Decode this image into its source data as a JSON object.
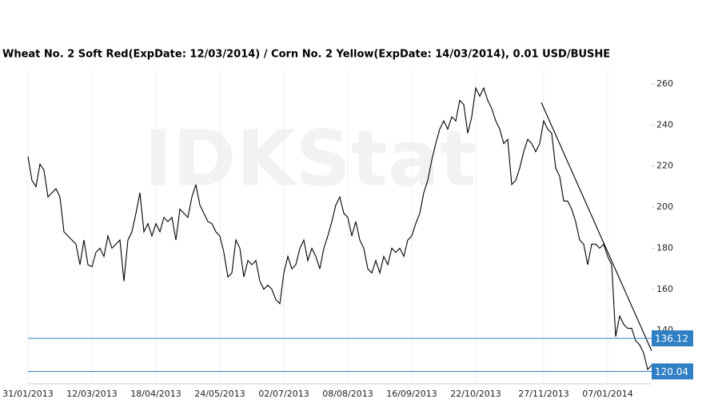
{
  "chart_data": {
    "type": "line",
    "title": "Wheat  No. 2 Soft Red(ExpDate: 12/03/2014) / Corn  No. 2 Yellow(ExpDate: 14/03/2014), 0.01 USD/BUSHE",
    "watermark": "IDKStat",
    "xlim": [
      0,
      156
    ],
    "xticks": [
      {
        "value": 0,
        "label": "31/01/2013"
      },
      {
        "value": 16,
        "label": "12/03/2013"
      },
      {
        "value": 32,
        "label": "18/04/2013"
      },
      {
        "value": 48,
        "label": "24/05/2013"
      },
      {
        "value": 64,
        "label": "02/07/2013"
      },
      {
        "value": 80,
        "label": "08/08/2013"
      },
      {
        "value": 96,
        "label": "16/09/2013"
      },
      {
        "value": 112,
        "label": "22/10/2013"
      },
      {
        "value": 129,
        "label": "27/11/2013"
      },
      {
        "value": 145,
        "label": "07/01/2014"
      }
    ],
    "ylim": [
      114,
      267
    ],
    "yticks": [
      140,
      160,
      180,
      200,
      220,
      240,
      260
    ],
    "grid": true,
    "series": [
      {
        "color": "#000000",
        "values": [
          224.7,
          213,
          210,
          221,
          218,
          205,
          207,
          209,
          205,
          188,
          186,
          184,
          182,
          172,
          184,
          172,
          171,
          178,
          180,
          176,
          186,
          180,
          182,
          184,
          164,
          184,
          188,
          197,
          207,
          188,
          192,
          186,
          192,
          188,
          195,
          193,
          195,
          184,
          199,
          197,
          195,
          205,
          211,
          201,
          197,
          193,
          192,
          188,
          186,
          178,
          166,
          168,
          184,
          180,
          166,
          174,
          172,
          174,
          164,
          160,
          162,
          160,
          155,
          153,
          168,
          176,
          170,
          172,
          180,
          184,
          174,
          180,
          176,
          170,
          180,
          186,
          193,
          201,
          205,
          197,
          195,
          186,
          193,
          184,
          180,
          170,
          168,
          174,
          168,
          176,
          172,
          180,
          178,
          180,
          176,
          184,
          186,
          192,
          197,
          207,
          213,
          223,
          231,
          238,
          242,
          238,
          244,
          242,
          252,
          250,
          236,
          244,
          258,
          254,
          258,
          252,
          248,
          242,
          238,
          231,
          233,
          211,
          213,
          219,
          227,
          233,
          231,
          227,
          231,
          242,
          238,
          236,
          219,
          215,
          203,
          203,
          199,
          193,
          184,
          182,
          172,
          182,
          182,
          180,
          182,
          176,
          172,
          137,
          147,
          143,
          141,
          141,
          135,
          133,
          129,
          121,
          123
        ]
      },
      {
        "color": "#000000",
        "x": [
          128.4,
          156
        ],
        "values": [
          251,
          130
        ]
      }
    ],
    "levels": {
      "color": "#2e7fc3",
      "values": [
        136.12,
        120.04
      ]
    }
  }
}
